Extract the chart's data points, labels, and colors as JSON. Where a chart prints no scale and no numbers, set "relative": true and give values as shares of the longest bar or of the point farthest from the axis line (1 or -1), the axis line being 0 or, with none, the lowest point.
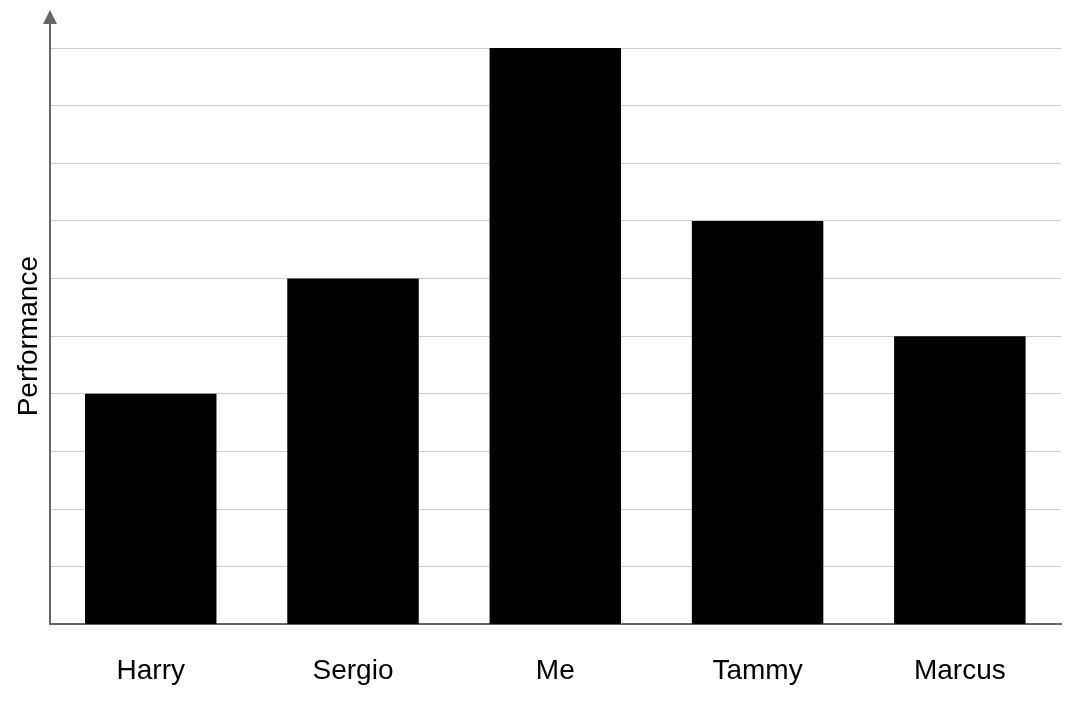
{
  "chart_data": {
    "type": "bar",
    "ylabel": "Performance",
    "categories": [
      "Harry",
      "Sergio",
      "Me",
      "Tammy",
      "Marcus"
    ],
    "values": [
      0.4,
      0.6,
      1,
      0.7,
      0.5
    ],
    "color": "#000000",
    "relative": true,
    "grid": "y"
  }
}
